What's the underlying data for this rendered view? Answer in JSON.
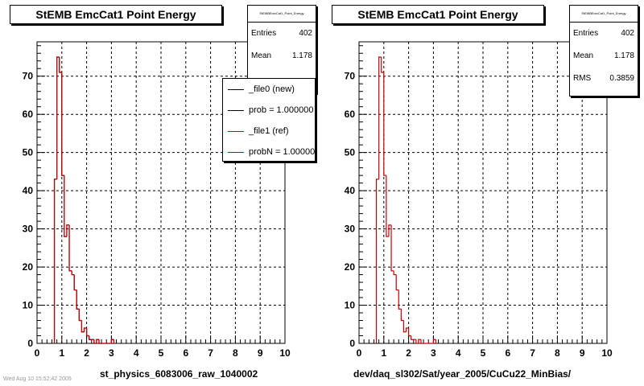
{
  "chart_data": [
    {
      "type": "histogram",
      "title": "StEMB EmcCat1 Point Energy",
      "xlabel": "st_physics_6083006_raw_1040002",
      "ylabel": "",
      "xlim": [
        0,
        10
      ],
      "ylim": [
        0,
        79
      ],
      "xticks": [
        0,
        1,
        2,
        3,
        4,
        5,
        6,
        7,
        8,
        9,
        10
      ],
      "yticks": [
        0,
        10,
        20,
        30,
        40,
        50,
        60,
        70
      ],
      "grid": true,
      "bin_edges": [
        0.7,
        0.8,
        0.9,
        1.0,
        1.1,
        1.2,
        1.3,
        1.4,
        1.5,
        1.6,
        1.7,
        1.8,
        1.9,
        2.0,
        2.1,
        2.2,
        2.3,
        2.4,
        2.5,
        2.6,
        2.7,
        2.8,
        2.9,
        3.0,
        3.1
      ],
      "series": [
        {
          "name": "_file0 (new)",
          "color": "#000000",
          "values": [
            43,
            75,
            71,
            44,
            28,
            31,
            19,
            18,
            14,
            9,
            6,
            3,
            4,
            2,
            1,
            1,
            0,
            1,
            0,
            0,
            0,
            0,
            0,
            1
          ]
        },
        {
          "name": "_file1 (ref)",
          "color": "#cc0000",
          "values": [
            43,
            75,
            71,
            44,
            28,
            31,
            19,
            18,
            14,
            9,
            6,
            3,
            4,
            2,
            1,
            1,
            0,
            1,
            0,
            0,
            0,
            0,
            0,
            1
          ]
        }
      ],
      "stats": {
        "name": "StEMBEmcCat1_Point_Energy",
        "entries": "402",
        "mean": "1.178"
      },
      "legend": [
        "_file0 (new)",
        "prob = 1.000000",
        "_file1 (ref)",
        "probN = 1.000000"
      ]
    },
    {
      "type": "histogram",
      "title": "StEMB EmcCat1 Point Energy",
      "xlabel": "dev/daq_sl302/Sat/year_2005/CuCu22_MinBias/",
      "ylabel": "",
      "xlim": [
        0,
        10
      ],
      "ylim": [
        0,
        79
      ],
      "xticks": [
        0,
        1,
        2,
        3,
        4,
        5,
        6,
        7,
        8,
        9,
        10
      ],
      "yticks": [
        0,
        10,
        20,
        30,
        40,
        50,
        60,
        70
      ],
      "grid": true,
      "bin_edges": [
        0.7,
        0.8,
        0.9,
        1.0,
        1.1,
        1.2,
        1.3,
        1.4,
        1.5,
        1.6,
        1.7,
        1.8,
        1.9,
        2.0,
        2.1,
        2.2,
        2.3,
        2.4,
        2.5,
        2.6,
        2.7,
        2.8,
        2.9,
        3.0,
        3.1
      ],
      "series": [
        {
          "name": "",
          "color": "#cc0000",
          "values": [
            43,
            75,
            71,
            44,
            28,
            31,
            19,
            18,
            14,
            9,
            6,
            3,
            4,
            2,
            1,
            1,
            0,
            1,
            0,
            0,
            0,
            0,
            0,
            1
          ]
        }
      ],
      "stats": {
        "name": "StEMBEmcCat1_Point_Energy",
        "entries": "402",
        "mean": "1.178",
        "rms": "0.3859"
      }
    }
  ],
  "ui": {
    "stats_labels": {
      "entries": "Entries",
      "mean": "Mean",
      "rms": "RMS"
    },
    "footer_note": "Wed Aug 10 15:52:42 2005"
  }
}
